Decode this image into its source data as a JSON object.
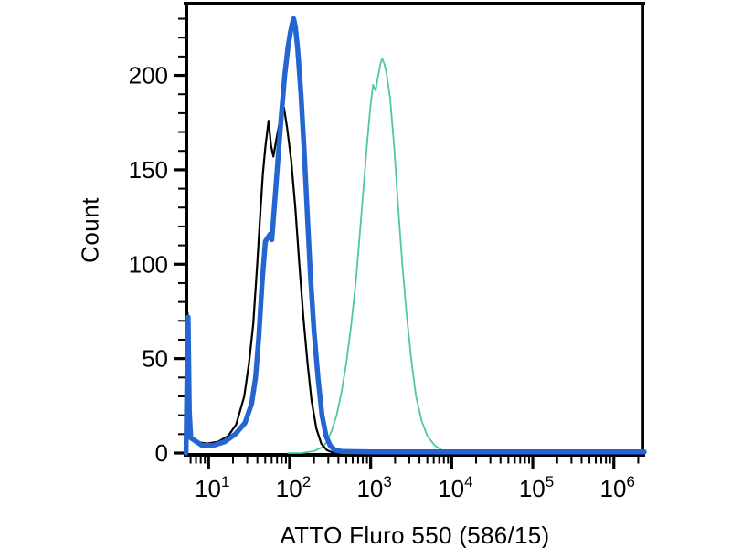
{
  "chart_data": {
    "type": "line",
    "subtype": "flow-cytometry-histogram-overlay",
    "title": "",
    "xlabel": "ATTO Fluro 550 (586/15)",
    "ylabel": "Count",
    "grid": false,
    "legend": false,
    "background_color": "#ffffff",
    "axis_color": "#000000",
    "x_axis": {
      "scale": "log10",
      "range_log10": [
        0.715,
        6.375
      ],
      "major_tick_exponents": [
        1,
        2,
        3,
        4,
        5,
        6
      ],
      "major_tick_labels": [
        "10^1",
        "10^2",
        "10^3",
        "10^4",
        "10^5",
        "10^6"
      ],
      "tick_label_base": "10",
      "minor_tick_mantissas": [
        2,
        3,
        4,
        5,
        6,
        7,
        8,
        9
      ]
    },
    "y_axis": {
      "range": [
        0,
        238
      ],
      "major_ticks": [
        0,
        50,
        100,
        150,
        200
      ],
      "major_tick_labels": [
        "0",
        "50",
        "100",
        "150",
        "200"
      ],
      "minor_tick_step": 10,
      "minor_tick_max": 230
    },
    "series": [
      {
        "name": "teal-thin-curve",
        "color": "#4fc7a0",
        "stroke_width": 1.8,
        "peak_x_value": 1360,
        "peak_count": 209,
        "points_log10x_count": [
          [
            1.98,
            0
          ],
          [
            2.15,
            0
          ],
          [
            2.3,
            1
          ],
          [
            2.4,
            3
          ],
          [
            2.46,
            6
          ],
          [
            2.52,
            12
          ],
          [
            2.58,
            20
          ],
          [
            2.64,
            32
          ],
          [
            2.7,
            48
          ],
          [
            2.76,
            68
          ],
          [
            2.82,
            92
          ],
          [
            2.87,
            118
          ],
          [
            2.92,
            145
          ],
          [
            2.96,
            166
          ],
          [
            3.0,
            185
          ],
          [
            3.03,
            195
          ],
          [
            3.06,
            192
          ],
          [
            3.09,
            199
          ],
          [
            3.12,
            206
          ],
          [
            3.14,
            209
          ],
          [
            3.17,
            206
          ],
          [
            3.2,
            200
          ],
          [
            3.24,
            188
          ],
          [
            3.29,
            162
          ],
          [
            3.34,
            130
          ],
          [
            3.39,
            100
          ],
          [
            3.44,
            75
          ],
          [
            3.5,
            50
          ],
          [
            3.56,
            30
          ],
          [
            3.63,
            17
          ],
          [
            3.7,
            9
          ],
          [
            3.79,
            4
          ],
          [
            3.88,
            1.5
          ],
          [
            4.0,
            0
          ]
        ]
      },
      {
        "name": "black-thin-curve",
        "color": "#000000",
        "stroke_width": 2.2,
        "peak_x_value": 85,
        "peak_count": 183,
        "points_log10x_count": [
          [
            0.722,
            0
          ],
          [
            0.732,
            45
          ],
          [
            0.742,
            74
          ],
          [
            0.752,
            28
          ],
          [
            0.77,
            10
          ],
          [
            0.84,
            6
          ],
          [
            0.98,
            5
          ],
          [
            1.12,
            6
          ],
          [
            1.24,
            9
          ],
          [
            1.34,
            15
          ],
          [
            1.44,
            30
          ],
          [
            1.5,
            48
          ],
          [
            1.55,
            68
          ],
          [
            1.6,
            100
          ],
          [
            1.64,
            128
          ],
          [
            1.67,
            148
          ],
          [
            1.7,
            162
          ],
          [
            1.74,
            176
          ],
          [
            1.77,
            163
          ],
          [
            1.8,
            157
          ],
          [
            1.84,
            167
          ],
          [
            1.88,
            176
          ],
          [
            1.93,
            183
          ],
          [
            1.97,
            172
          ],
          [
            2.02,
            155
          ],
          [
            2.07,
            130
          ],
          [
            2.12,
            100
          ],
          [
            2.17,
            72
          ],
          [
            2.22,
            48
          ],
          [
            2.27,
            28
          ],
          [
            2.33,
            13
          ],
          [
            2.39,
            5
          ],
          [
            2.46,
            1.5
          ],
          [
            2.55,
            0
          ],
          [
            2.62,
            0
          ]
        ]
      },
      {
        "name": "blue-thick-curve",
        "color": "#2565d2",
        "stroke_width": 5.5,
        "peak_x_value": 113,
        "peak_count": 230,
        "points_log10x_count": [
          [
            0.722,
            0
          ],
          [
            0.733,
            38
          ],
          [
            0.748,
            72
          ],
          [
            0.762,
            22
          ],
          [
            0.78,
            8
          ],
          [
            0.92,
            4
          ],
          [
            1.06,
            4
          ],
          [
            1.2,
            6
          ],
          [
            1.33,
            10
          ],
          [
            1.45,
            16
          ],
          [
            1.53,
            26
          ],
          [
            1.58,
            40
          ],
          [
            1.62,
            62
          ],
          [
            1.66,
            90
          ],
          [
            1.7,
            112
          ],
          [
            1.73,
            114
          ],
          [
            1.76,
            116
          ],
          [
            1.78,
            113
          ],
          [
            1.82,
            135
          ],
          [
            1.86,
            158
          ],
          [
            1.9,
            180
          ],
          [
            1.94,
            200
          ],
          [
            1.98,
            215
          ],
          [
            2.01,
            223
          ],
          [
            2.035,
            228
          ],
          [
            2.05,
            230
          ],
          [
            2.07,
            226
          ],
          [
            2.1,
            214
          ],
          [
            2.14,
            190
          ],
          [
            2.18,
            160
          ],
          [
            2.22,
            125
          ],
          [
            2.26,
            92
          ],
          [
            2.3,
            65
          ],
          [
            2.35,
            40
          ],
          [
            2.4,
            20
          ],
          [
            2.45,
            9
          ],
          [
            2.5,
            4
          ],
          [
            2.56,
            1.5
          ],
          [
            2.65,
            0.8
          ],
          [
            3.0,
            0.6
          ],
          [
            4.0,
            0.6
          ],
          [
            5.0,
            0.6
          ],
          [
            6.375,
            0.6
          ]
        ]
      }
    ]
  }
}
